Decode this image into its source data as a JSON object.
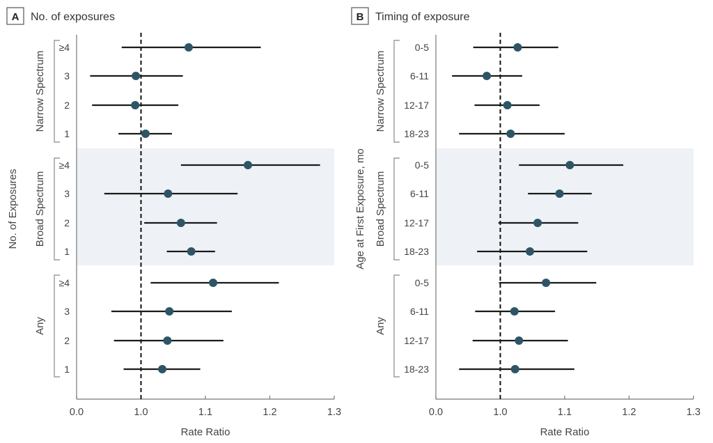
{
  "chart_data": [
    {
      "type": "forest",
      "panel_letter": "A",
      "title": "No. of exposures",
      "xlabel": "Rate Ratio",
      "ylabel": "No. of Exposures",
      "xlim_display": [
        0.9,
        1.3
      ],
      "axis_break_note": "first tick labeled 0.0 marks a broken axis",
      "xticks": [
        {
          "value": 0.9,
          "label": "0.0"
        },
        {
          "value": 1.0,
          "label": "1.0"
        },
        {
          "value": 1.1,
          "label": "1.1"
        },
        {
          "value": 1.2,
          "label": "1.2"
        },
        {
          "value": 1.3,
          "label": "1.3"
        }
      ],
      "reference_line": 1.0,
      "shaded_group": "Broad Spectrum",
      "groups": [
        {
          "name": "Narrow Spectrum",
          "rows": [
            {
              "label": "≥4",
              "estimate": 1.074,
              "lower": 0.97,
              "upper": 1.186
            },
            {
              "label": "3",
              "estimate": 0.992,
              "lower": 0.921,
              "upper": 1.065
            },
            {
              "label": "2",
              "estimate": 0.991,
              "lower": 0.924,
              "upper": 1.058
            },
            {
              "label": "1",
              "estimate": 1.007,
              "lower": 0.965,
              "upper": 1.048
            }
          ]
        },
        {
          "name": "Broad Spectrum",
          "rows": [
            {
              "label": "≥4",
              "estimate": 1.166,
              "lower": 1.062,
              "upper": 1.278
            },
            {
              "label": "3",
              "estimate": 1.042,
              "lower": 0.943,
              "upper": 1.15
            },
            {
              "label": "2",
              "estimate": 1.062,
              "lower": 1.005,
              "upper": 1.118
            },
            {
              "label": "1",
              "estimate": 1.078,
              "lower": 1.04,
              "upper": 1.115
            }
          ]
        },
        {
          "name": "Any",
          "rows": [
            {
              "label": "≥4",
              "estimate": 1.112,
              "lower": 1.015,
              "upper": 1.214
            },
            {
              "label": "3",
              "estimate": 1.044,
              "lower": 0.954,
              "upper": 1.141
            },
            {
              "label": "2",
              "estimate": 1.041,
              "lower": 0.958,
              "upper": 1.128
            },
            {
              "label": "1",
              "estimate": 1.033,
              "lower": 0.973,
              "upper": 1.092
            }
          ]
        }
      ]
    },
    {
      "type": "forest",
      "panel_letter": "B",
      "title": "Timing of exposure",
      "xlabel": "Rate Ratio",
      "ylabel": "Age at First Exposure, mo",
      "xlim_display": [
        0.9,
        1.3
      ],
      "axis_break_note": "first tick labeled 0.0 marks a broken axis",
      "xticks": [
        {
          "value": 0.9,
          "label": "0.0"
        },
        {
          "value": 1.0,
          "label": "1.0"
        },
        {
          "value": 1.1,
          "label": "1.1"
        },
        {
          "value": 1.2,
          "label": "1.2"
        },
        {
          "value": 1.3,
          "label": "1.3"
        }
      ],
      "reference_line": 1.0,
      "shaded_group": "Broad Spectrum",
      "groups": [
        {
          "name": "Narrow Spectrum",
          "rows": [
            {
              "label": "0-5",
              "estimate": 1.027,
              "lower": 0.958,
              "upper": 1.09
            },
            {
              "label": "6-11",
              "estimate": 0.979,
              "lower": 0.925,
              "upper": 1.034
            },
            {
              "label": "12-17",
              "estimate": 1.011,
              "lower": 0.96,
              "upper": 1.061
            },
            {
              "label": "18-23",
              "estimate": 1.016,
              "lower": 0.936,
              "upper": 1.1
            }
          ]
        },
        {
          "name": "Broad Spectrum",
          "rows": [
            {
              "label": "0-5",
              "estimate": 1.108,
              "lower": 1.029,
              "upper": 1.191
            },
            {
              "label": "6-11",
              "estimate": 1.092,
              "lower": 1.043,
              "upper": 1.142
            },
            {
              "label": "12-17",
              "estimate": 1.058,
              "lower": 0.997,
              "upper": 1.121
            },
            {
              "label": "18-23",
              "estimate": 1.046,
              "lower": 0.964,
              "upper": 1.135
            }
          ]
        },
        {
          "name": "Any",
          "rows": [
            {
              "label": "0-5",
              "estimate": 1.071,
              "lower": 0.998,
              "upper": 1.149
            },
            {
              "label": "6-11",
              "estimate": 1.022,
              "lower": 0.961,
              "upper": 1.085
            },
            {
              "label": "12-17",
              "estimate": 1.029,
              "lower": 0.957,
              "upper": 1.105
            },
            {
              "label": "18-23",
              "estimate": 1.023,
              "lower": 0.936,
              "upper": 1.115
            }
          ]
        }
      ]
    }
  ],
  "colors": {
    "marker": "#2e5566",
    "ci_line": "#1a1a1a",
    "shade": "#eef1f5",
    "axis": "#777777",
    "reference": "#111111"
  }
}
